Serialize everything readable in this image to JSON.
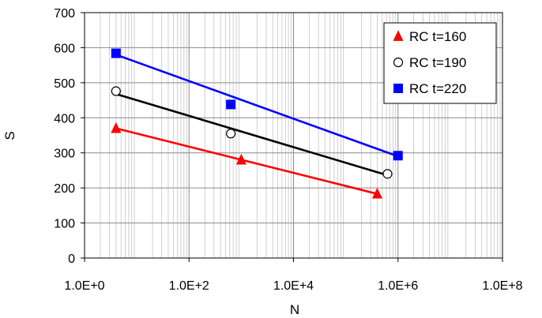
{
  "chart_data": {
    "type": "scatter",
    "xlabel": "N",
    "ylabel": "S",
    "x_scale": "log10",
    "xlim": [
      1,
      100000000
    ],
    "ylim": [
      0,
      700
    ],
    "x_ticks": [
      1,
      100,
      10000,
      1000000,
      100000000
    ],
    "x_tick_labels": [
      "1.0E+0",
      "1.0E+2",
      "1.0E+4",
      "1.0E+6",
      "1.0E+8"
    ],
    "y_ticks": [
      0,
      100,
      200,
      300,
      400,
      500,
      600,
      700
    ],
    "y_tick_labels": [
      "0",
      "100",
      "200",
      "300",
      "400",
      "500",
      "600",
      "700"
    ],
    "grid": true,
    "legend_position": "top-right",
    "series": [
      {
        "name": "RC t=160",
        "marker": "triangle",
        "color": "#ff0000",
        "points": [
          [
            4,
            370
          ],
          [
            1000,
            280
          ],
          [
            400000,
            183
          ]
        ],
        "fit_line": [
          [
            4,
            370
          ],
          [
            400000,
            183
          ]
        ]
      },
      {
        "name": "RC t=190",
        "marker": "open-circle",
        "color": "#000000",
        "points": [
          [
            4,
            476
          ],
          [
            630,
            355
          ],
          [
            630000,
            240
          ]
        ],
        "fit_line": [
          [
            4,
            468
          ],
          [
            630000,
            236
          ]
        ]
      },
      {
        "name": "RC t=220",
        "marker": "square",
        "color": "#0000ff",
        "points": [
          [
            4,
            584
          ],
          [
            630,
            438
          ],
          [
            1000000,
            292
          ]
        ],
        "fit_line": [
          [
            4,
            580
          ],
          [
            1000000,
            290
          ]
        ]
      }
    ]
  }
}
